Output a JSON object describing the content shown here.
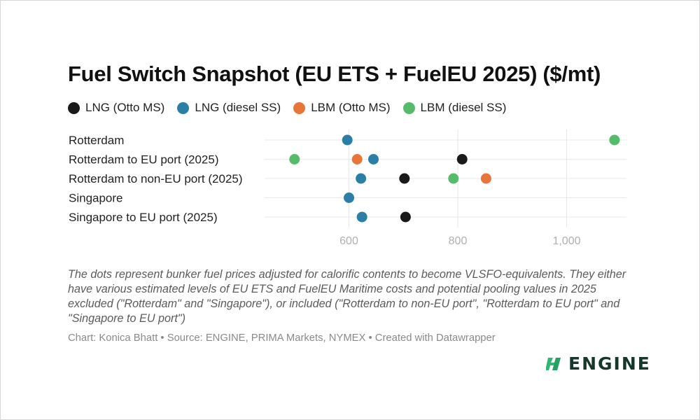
{
  "chart_data": {
    "type": "scatter",
    "title": "Fuel Switch Snapshot (EU ETS + FuelEU 2025) ($/mt)",
    "categories": [
      "Rotterdam",
      "Rotterdam to EU port (2025)",
      "Rotterdam to non-EU port (2025)",
      "Singapore",
      "Singapore to EU port (2025)"
    ],
    "series": [
      {
        "name": "LNG (Otto MS)",
        "color": "#1a1a1a",
        "values": [
          null,
          808,
          702,
          null,
          704
        ]
      },
      {
        "name": "LNG (diesel SS)",
        "color": "#2b7fa6",
        "values": [
          597,
          645,
          622,
          600,
          624
        ]
      },
      {
        "name": "LBM (Otto MS)",
        "color": "#e8763a",
        "values": [
          null,
          615,
          null,
          null,
          null
        ]
      },
      {
        "name": "LBM (diesel SS)",
        "color": "#55bd6a",
        "values": [
          1088,
          500,
          792,
          null,
          null
        ]
      },
      {
        "name": "LBM (Otto MS)",
        "color": "#e8763a",
        "values": [
          null,
          null,
          852,
          null,
          null
        ]
      }
    ],
    "legend": [
      {
        "name": "LNG (Otto MS)",
        "color": "#1a1a1a"
      },
      {
        "name": "LNG (diesel SS)",
        "color": "#2b7fa6"
      },
      {
        "name": "LBM (Otto MS)",
        "color": "#e8763a"
      },
      {
        "name": "LBM (diesel SS)",
        "color": "#55bd6a"
      }
    ],
    "x_ticks": [
      {
        "value": 600,
        "label": "600"
      },
      {
        "value": 800,
        "label": "800"
      },
      {
        "value": 1000,
        "label": "1,000"
      }
    ],
    "xlim": [
      445,
      1110
    ],
    "grid": true,
    "legend_position": "top-left"
  },
  "note": "The dots represent bunker fuel prices adjusted for calorific contents to become VLSFO-equivalents. They either have various estimated levels of EU ETS and FuelEU Maritime costs and potential pooling values in 2025 excluded (\"Rotterdam\" and \"Singapore\"), or included (\"Rotterdam to non-EU port\", \"Rotterdam to EU port\" and \"Singapore to EU port\")",
  "credits": "Chart: Konica Bhatt • Source: ENGINE, PRIMA Markets, NYMEX • Created with Datawrapper",
  "brand": {
    "name": "ENGINE",
    "logo_icon": "engine-logo-icon"
  }
}
